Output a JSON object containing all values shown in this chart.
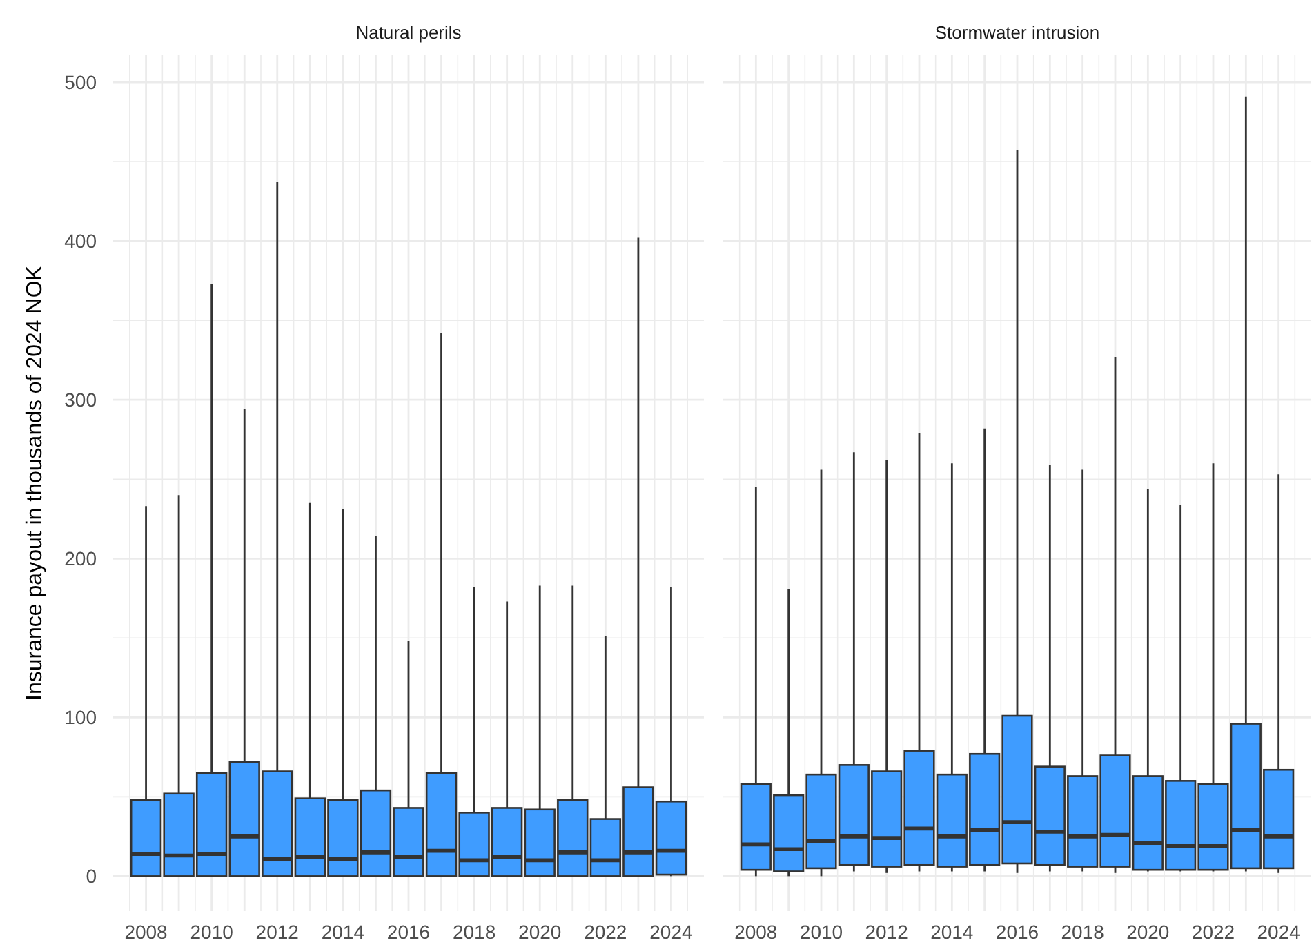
{
  "chart_data": [
    {
      "type": "box",
      "title": "Natural perils",
      "ylabel": "Insurance payout in thousands of 2024 NOK",
      "categories": [
        "2008",
        null,
        "2010",
        null,
        "2012",
        null,
        "2014",
        null,
        "2016",
        null,
        "2018",
        null,
        "2020",
        null,
        "2022",
        null,
        "2024"
      ],
      "series": [
        {
          "color": "#3f9cff",
          "boxes": [
            {
              "low": 0,
              "q1": 0,
              "median": 14,
              "q3": 48,
              "high": 233
            },
            {
              "low": 0,
              "q1": 0,
              "median": 13,
              "q3": 52,
              "high": 240
            },
            {
              "low": 0,
              "q1": 0,
              "median": 14,
              "q3": 65,
              "high": 373
            },
            {
              "low": 0,
              "q1": 0,
              "median": 25,
              "q3": 72,
              "high": 294
            },
            {
              "low": 0,
              "q1": 0,
              "median": 11,
              "q3": 66,
              "high": 437
            },
            {
              "low": 0,
              "q1": 0,
              "median": 12,
              "q3": 49,
              "high": 235
            },
            {
              "low": 0,
              "q1": 0,
              "median": 11,
              "q3": 48,
              "high": 231
            },
            {
              "low": 0,
              "q1": 0,
              "median": 15,
              "q3": 54,
              "high": 214
            },
            {
              "low": 0,
              "q1": 0,
              "median": 12,
              "q3": 43,
              "high": 148
            },
            {
              "low": 0,
              "q1": 0,
              "median": 16,
              "q3": 65,
              "high": 342
            },
            {
              "low": 0,
              "q1": 0,
              "median": 10,
              "q3": 40,
              "high": 182
            },
            {
              "low": 0,
              "q1": 0,
              "median": 12,
              "q3": 43,
              "high": 173
            },
            {
              "low": 0,
              "q1": 0,
              "median": 10,
              "q3": 42,
              "high": 183
            },
            {
              "low": 0,
              "q1": 0,
              "median": 15,
              "q3": 48,
              "high": 183
            },
            {
              "low": 0,
              "q1": 0,
              "median": 10,
              "q3": 36,
              "high": 151
            },
            {
              "low": 0,
              "q1": 0,
              "median": 15,
              "q3": 56,
              "high": 402
            },
            {
              "low": 0,
              "q1": 1,
              "median": 16,
              "q3": 47,
              "high": 182
            }
          ]
        }
      ],
      "ylim": [
        -22,
        517
      ],
      "yticks": [
        0,
        {
          "value": 50,
          "label": null
        },
        100,
        {
          "value": 150,
          "label": null
        },
        200,
        {
          "value": 250,
          "label": null
        },
        300,
        {
          "value": 350,
          "label": null
        },
        400,
        {
          "value": 450,
          "label": null
        },
        500
      ],
      "grid": true
    },
    {
      "type": "box",
      "title": "Stormwater intrusion",
      "categories": [
        "2008",
        null,
        "2010",
        null,
        "2012",
        null,
        "2014",
        null,
        "2016",
        null,
        "2018",
        null,
        "2020",
        null,
        "2022",
        null,
        "2024"
      ],
      "series": [
        {
          "color": "#3f9cff",
          "boxes": [
            {
              "low": 0,
              "q1": 4,
              "median": 20,
              "q3": 58,
              "high": 245
            },
            {
              "low": 0,
              "q1": 3,
              "median": 17,
              "q3": 51,
              "high": 181
            },
            {
              "low": 0,
              "q1": 5,
              "median": 22,
              "q3": 64,
              "high": 256
            },
            {
              "low": 3,
              "q1": 7,
              "median": 25,
              "q3": 70,
              "high": 267
            },
            {
              "low": 2,
              "q1": 6,
              "median": 24,
              "q3": 66,
              "high": 262
            },
            {
              "low": 3,
              "q1": 7,
              "median": 30,
              "q3": 79,
              "high": 279
            },
            {
              "low": 3,
              "q1": 6,
              "median": 25,
              "q3": 64,
              "high": 260
            },
            {
              "low": 3,
              "q1": 7,
              "median": 29,
              "q3": 77,
              "high": 282
            },
            {
              "low": 2,
              "q1": 8,
              "median": 34,
              "q3": 101,
              "high": 457
            },
            {
              "low": 3,
              "q1": 7,
              "median": 28,
              "q3": 69,
              "high": 259
            },
            {
              "low": 3,
              "q1": 6,
              "median": 25,
              "q3": 63,
              "high": 256
            },
            {
              "low": 2,
              "q1": 6,
              "median": 26,
              "q3": 76,
              "high": 327
            },
            {
              "low": 3,
              "q1": 4,
              "median": 21,
              "q3": 63,
              "high": 244
            },
            {
              "low": 3,
              "q1": 4,
              "median": 19,
              "q3": 60,
              "high": 234
            },
            {
              "low": 3,
              "q1": 4,
              "median": 19,
              "q3": 58,
              "high": 260
            },
            {
              "low": 3,
              "q1": 5,
              "median": 29,
              "q3": 96,
              "high": 491
            },
            {
              "low": 2,
              "q1": 5,
              "median": 25,
              "q3": 67,
              "high": 253
            }
          ]
        }
      ],
      "ylim": [
        -22,
        517
      ],
      "yticks": [
        0,
        {
          "value": 50,
          "label": null
        },
        100,
        {
          "value": 150,
          "label": null
        },
        200,
        {
          "value": 250,
          "label": null
        },
        300,
        {
          "value": 350,
          "label": null
        },
        400,
        {
          "value": 450,
          "label": null
        },
        500
      ],
      "grid": true,
      "tick_labels": "x"
    }
  ]
}
